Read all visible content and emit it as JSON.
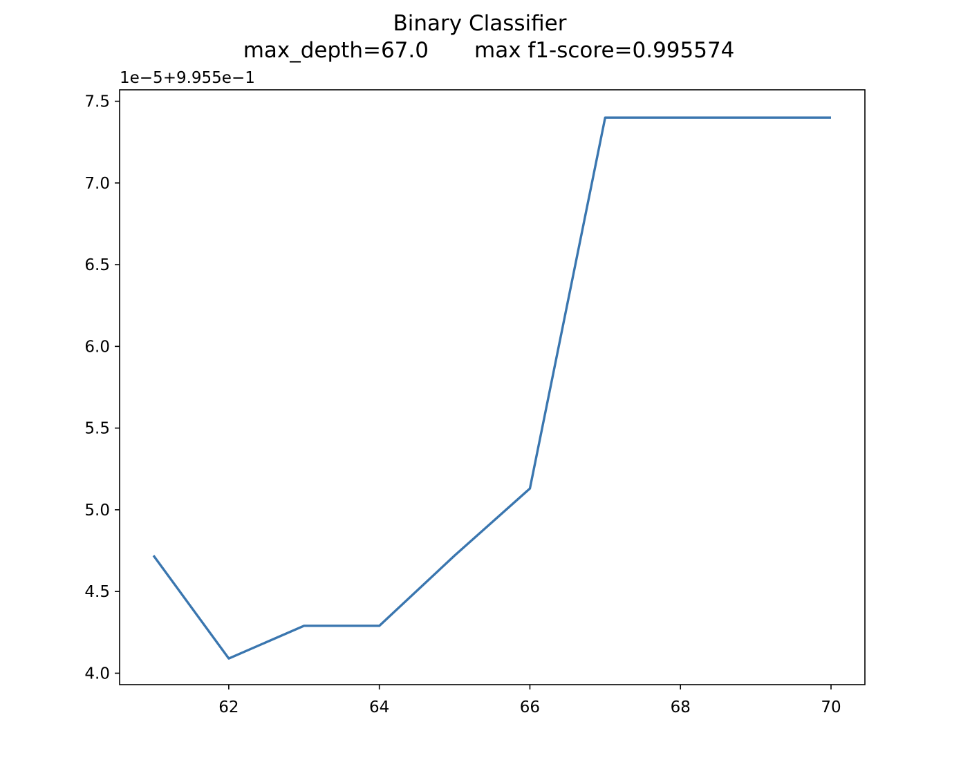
{
  "chart_data": {
    "type": "line",
    "title": "Binary Classifier",
    "subtitle_left": "max_depth=67.0",
    "subtitle_right": "max f1-score=0.995574",
    "xlabel": "",
    "ylabel": "",
    "y_offset_label": "1e−5+9.955e−1",
    "x": [
      61,
      62,
      63,
      64,
      65,
      66,
      67,
      68,
      69,
      70
    ],
    "series": [
      {
        "values": [
          4.72,
          4.09,
          4.29,
          4.29,
          4.72,
          5.13,
          7.4,
          7.4,
          7.4,
          7.4
        ],
        "color": "#3a76af"
      }
    ],
    "xlim": [
      60.55,
      70.45
    ],
    "ylim": [
      3.93,
      7.57
    ],
    "x_ticks": [
      62,
      64,
      66,
      68,
      70
    ],
    "x_tick_labels": [
      "62",
      "64",
      "66",
      "68",
      "70"
    ],
    "y_ticks": [
      4.0,
      4.5,
      5.0,
      5.5,
      6.0,
      6.5,
      7.0,
      7.5
    ],
    "y_tick_labels": [
      "4.0",
      "4.5",
      "5.0",
      "5.5",
      "6.0",
      "6.5",
      "7.0",
      "7.5"
    ],
    "grid": false,
    "legend": "none"
  }
}
